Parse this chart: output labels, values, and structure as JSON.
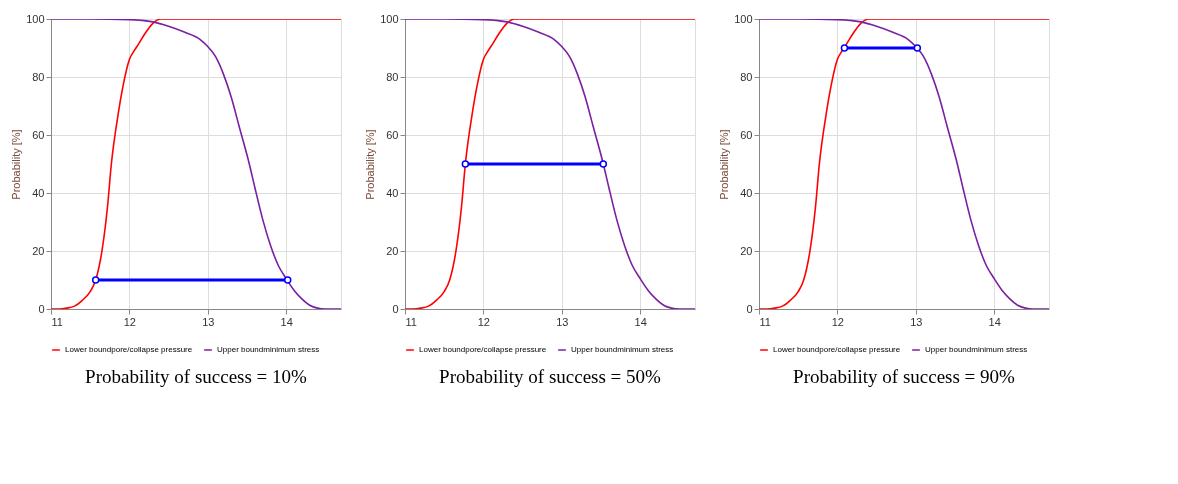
{
  "chart_data": [
    {
      "type": "line",
      "title": "Probability of success = 10%",
      "ylabel": "Probability [%]",
      "xlim": [
        11,
        14.7
      ],
      "ylim": [
        0,
        100
      ],
      "xticks": [
        11,
        12,
        13,
        14
      ],
      "yticks": [
        0,
        20,
        40,
        60,
        80,
        100
      ],
      "grid": true,
      "legend": "bottom",
      "line_style": "solid",
      "series": [
        {
          "name": "Lower boundpore/collapse pressure",
          "color": "#ff0000",
          "x": [
            11,
            11.1,
            11.2,
            11.3,
            11.4,
            11.5,
            11.57,
            11.65,
            11.72,
            11.77,
            11.85,
            11.92,
            12,
            12.06,
            12.12,
            12.2,
            12.3,
            12.4,
            13,
            14,
            14.7
          ],
          "values": [
            0,
            0,
            0.3,
            1,
            3,
            6,
            10,
            20,
            35,
            50,
            66,
            77,
            86,
            89,
            91.5,
            95,
            98.5,
            100,
            100,
            100,
            100
          ]
        },
        {
          "name": "Upper boundminimum stress",
          "color": "#7b1fa2",
          "x": [
            11,
            11.5,
            12,
            12.3,
            12.5,
            12.7,
            12.9,
            13,
            13.1,
            13.2,
            13.3,
            13.4,
            13.53,
            13.6,
            13.7,
            13.8,
            13.9,
            14,
            14.1,
            14.2,
            14.3,
            14.4,
            14.5,
            14.7
          ],
          "values": [
            100,
            100,
            99.8,
            99,
            97.5,
            95.5,
            93,
            90.5,
            87,
            81,
            73,
            63,
            50,
            42,
            31,
            22,
            15,
            10.5,
            6.5,
            3.5,
            1.3,
            0.3,
            0,
            0
          ]
        },
        {
          "color": "#0000ff",
          "marker": "circle",
          "x": [
            11.57,
            14.02
          ],
          "values": [
            10,
            10
          ]
        }
      ]
    },
    {
      "type": "line",
      "title": "Probability of success = 50%",
      "ylabel": "Probability [%]",
      "xlim": [
        11,
        14.7
      ],
      "ylim": [
        0,
        100
      ],
      "xticks": [
        11,
        12,
        13,
        14
      ],
      "yticks": [
        0,
        20,
        40,
        60,
        80,
        100
      ],
      "grid": true,
      "legend": "bottom",
      "line_style": "solid",
      "series": [
        {
          "name": "Lower boundpore/collapse pressure",
          "color": "#ff0000",
          "x": [
            11,
            11.1,
            11.2,
            11.3,
            11.4,
            11.5,
            11.57,
            11.65,
            11.72,
            11.77,
            11.85,
            11.92,
            12,
            12.06,
            12.12,
            12.2,
            12.3,
            12.4,
            13,
            14,
            14.7
          ],
          "values": [
            0,
            0,
            0.3,
            1,
            3,
            6,
            10,
            20,
            35,
            50,
            66,
            77,
            86,
            89,
            91.5,
            95,
            98.5,
            100,
            100,
            100,
            100
          ]
        },
        {
          "name": "Upper boundminimum stress",
          "color": "#7b1fa2",
          "x": [
            11,
            11.5,
            12,
            12.3,
            12.5,
            12.7,
            12.9,
            13,
            13.1,
            13.2,
            13.3,
            13.4,
            13.53,
            13.6,
            13.7,
            13.8,
            13.9,
            14,
            14.1,
            14.2,
            14.3,
            14.4,
            14.5,
            14.7
          ],
          "values": [
            100,
            100,
            99.8,
            99,
            97.5,
            95.5,
            93,
            90.5,
            87,
            81,
            73,
            63,
            50,
            42,
            31,
            22,
            15,
            10.5,
            6.5,
            3.5,
            1.3,
            0.3,
            0,
            0
          ]
        },
        {
          "color": "#0000ff",
          "marker": "circle",
          "x": [
            11.77,
            13.53
          ],
          "values": [
            50,
            50
          ]
        }
      ]
    },
    {
      "type": "line",
      "title": "Probability of success = 90%",
      "ylabel": "Probability [%]",
      "xlim": [
        11,
        14.7
      ],
      "ylim": [
        0,
        100
      ],
      "xticks": [
        11,
        12,
        13,
        14
      ],
      "yticks": [
        0,
        20,
        40,
        60,
        80,
        100
      ],
      "grid": true,
      "legend": "bottom",
      "line_style": "solid",
      "series": [
        {
          "name": "Lower boundpore/collapse pressure",
          "color": "#ff0000",
          "x": [
            11,
            11.1,
            11.2,
            11.3,
            11.4,
            11.5,
            11.57,
            11.65,
            11.72,
            11.77,
            11.85,
            11.92,
            12,
            12.06,
            12.12,
            12.2,
            12.3,
            12.4,
            13,
            14,
            14.7
          ],
          "values": [
            0,
            0,
            0.3,
            1,
            3,
            6,
            10,
            20,
            35,
            50,
            66,
            77,
            86,
            89,
            91.5,
            95,
            98.5,
            100,
            100,
            100,
            100
          ]
        },
        {
          "name": "Upper boundminimum stress",
          "color": "#7b1fa2",
          "x": [
            11,
            11.5,
            12,
            12.3,
            12.5,
            12.7,
            12.9,
            13,
            13.1,
            13.2,
            13.3,
            13.4,
            13.53,
            13.6,
            13.7,
            13.8,
            13.9,
            14,
            14.1,
            14.2,
            14.3,
            14.4,
            14.5,
            14.7
          ],
          "values": [
            100,
            100,
            99.8,
            99,
            97.5,
            95.5,
            93,
            90.5,
            87,
            81,
            73,
            63,
            50,
            42,
            31,
            22,
            15,
            10.5,
            6.5,
            3.5,
            1.3,
            0.3,
            0,
            0
          ]
        },
        {
          "color": "#0000ff",
          "marker": "circle",
          "x": [
            12.09,
            13.02
          ],
          "values": [
            90,
            90
          ]
        }
      ]
    }
  ]
}
